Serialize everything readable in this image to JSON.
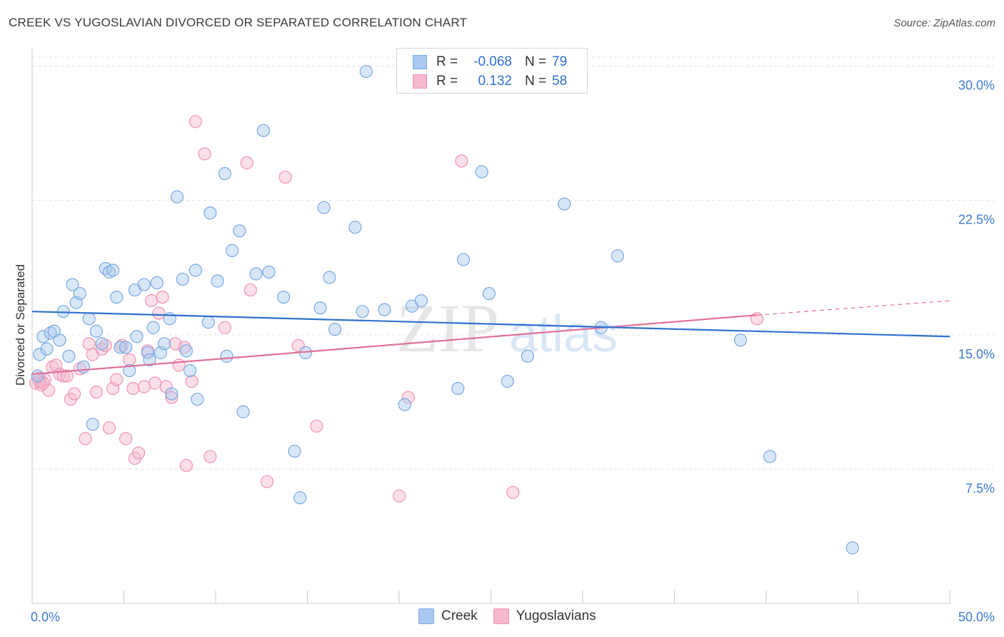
{
  "title": "CREEK VS YUGOSLAVIAN DIVORCED OR SEPARATED CORRELATION CHART",
  "source": "Source: ZipAtlas.com",
  "watermark": {
    "zip": "ZIP",
    "atlas": "atlas"
  },
  "legend": {
    "rows": [
      {
        "r_label": "R =",
        "r_value": "-0.068",
        "n_label": "N =",
        "n_value": "79"
      },
      {
        "r_label": "R =",
        "r_value": "0.132",
        "n_label": "N =",
        "n_value": "58"
      }
    ]
  },
  "bottom_legend": {
    "creek": "Creek",
    "yugoslavians": "Yugoslavians"
  },
  "colors": {
    "creek_fill": "#a9c9f0",
    "creek_stroke": "#7aa8e0",
    "creek_line": "#2f72d0",
    "yugo_fill": "#f6b8cb",
    "yugo_stroke": "#ee94b1",
    "yugo_line": "#e0709a",
    "tick_text": "#3d7bd0"
  },
  "chart_data": {
    "type": "scatter",
    "title": "CREEK VS YUGOSLAVIAN DIVORCED OR SEPARATED CORRELATION CHART",
    "xlabel": "",
    "ylabel": "Divorced or Separated",
    "xlim": [
      0,
      50
    ],
    "ylim": [
      0,
      30.5
    ],
    "x_tick_labels": [
      "0.0%",
      "50.0%"
    ],
    "y_ticks": [
      7.5,
      15.0,
      22.5,
      30.0
    ],
    "y_tick_labels": [
      "7.5%",
      "15.0%",
      "22.5%",
      "30.0%"
    ],
    "grid": true,
    "legend_placement": "top-center",
    "series": [
      {
        "name": "Creek",
        "r": -0.068,
        "n": 79,
        "trend": {
          "x": [
            0,
            50
          ],
          "y": [
            16.3,
            14.9
          ]
        },
        "points": [
          [
            0.3,
            12.7
          ],
          [
            0.4,
            13.9
          ],
          [
            0.6,
            14.9
          ],
          [
            0.8,
            14.2
          ],
          [
            1.0,
            15.1
          ],
          [
            1.2,
            15.2
          ],
          [
            1.5,
            14.7
          ],
          [
            1.7,
            16.3
          ],
          [
            2.0,
            13.8
          ],
          [
            2.2,
            17.8
          ],
          [
            2.4,
            16.8
          ],
          [
            2.6,
            17.3
          ],
          [
            2.8,
            13.2
          ],
          [
            3.1,
            15.9
          ],
          [
            3.3,
            10.0
          ],
          [
            3.5,
            15.2
          ],
          [
            3.8,
            14.5
          ],
          [
            4.0,
            18.7
          ],
          [
            4.2,
            18.5
          ],
          [
            4.4,
            18.6
          ],
          [
            4.6,
            17.1
          ],
          [
            4.8,
            14.3
          ],
          [
            5.1,
            14.3
          ],
          [
            5.3,
            13.0
          ],
          [
            5.6,
            17.5
          ],
          [
            5.7,
            14.9
          ],
          [
            6.1,
            17.8
          ],
          [
            6.3,
            14.0
          ],
          [
            6.4,
            13.6
          ],
          [
            6.6,
            15.4
          ],
          [
            6.8,
            17.9
          ],
          [
            7.0,
            14.0
          ],
          [
            7.2,
            14.5
          ],
          [
            7.5,
            15.9
          ],
          [
            7.6,
            11.7
          ],
          [
            7.9,
            22.7
          ],
          [
            8.2,
            18.1
          ],
          [
            8.4,
            14.1
          ],
          [
            8.6,
            13.0
          ],
          [
            8.9,
            18.6
          ],
          [
            9.0,
            11.4
          ],
          [
            9.6,
            15.7
          ],
          [
            9.7,
            21.8
          ],
          [
            10.1,
            18.0
          ],
          [
            10.5,
            24.0
          ],
          [
            10.6,
            13.8
          ],
          [
            10.9,
            19.7
          ],
          [
            11.3,
            20.8
          ],
          [
            11.5,
            10.7
          ],
          [
            12.2,
            18.4
          ],
          [
            12.6,
            26.4
          ],
          [
            12.9,
            18.5
          ],
          [
            13.7,
            17.1
          ],
          [
            14.3,
            8.5
          ],
          [
            14.6,
            5.9
          ],
          [
            14.9,
            14.0
          ],
          [
            15.7,
            16.5
          ],
          [
            15.9,
            22.1
          ],
          [
            16.2,
            18.2
          ],
          [
            16.5,
            15.3
          ],
          [
            17.6,
            21.0
          ],
          [
            18.0,
            16.3
          ],
          [
            18.2,
            29.7
          ],
          [
            19.2,
            16.4
          ],
          [
            20.3,
            11.1
          ],
          [
            20.7,
            16.6
          ],
          [
            21.2,
            16.9
          ],
          [
            23.2,
            12.0
          ],
          [
            23.5,
            19.2
          ],
          [
            24.5,
            24.1
          ],
          [
            24.9,
            17.3
          ],
          [
            25.9,
            12.4
          ],
          [
            27.0,
            13.8
          ],
          [
            29.0,
            22.3
          ],
          [
            31.0,
            15.4
          ],
          [
            31.9,
            19.4
          ],
          [
            38.6,
            14.7
          ],
          [
            40.2,
            8.2
          ],
          [
            44.7,
            3.1
          ]
        ]
      },
      {
        "name": "Yugoslavians",
        "r": 0.132,
        "n": 58,
        "trend": {
          "x": [
            0,
            39.5
          ],
          "y": [
            12.8,
            16.1
          ]
        },
        "trend_dashed": {
          "x": [
            39.5,
            50
          ],
          "y": [
            16.1,
            16.9
          ]
        },
        "points": [
          [
            0.2,
            12.3
          ],
          [
            0.4,
            12.6
          ],
          [
            0.5,
            12.2
          ],
          [
            0.7,
            12.5
          ],
          [
            0.9,
            11.9
          ],
          [
            1.1,
            13.2
          ],
          [
            1.3,
            13.3
          ],
          [
            1.5,
            12.8
          ],
          [
            1.7,
            12.7
          ],
          [
            1.9,
            12.7
          ],
          [
            2.1,
            11.4
          ],
          [
            2.3,
            11.7
          ],
          [
            2.6,
            13.1
          ],
          [
            2.9,
            9.2
          ],
          [
            3.1,
            14.5
          ],
          [
            3.3,
            13.9
          ],
          [
            3.5,
            11.8
          ],
          [
            3.8,
            14.2
          ],
          [
            4.0,
            14.4
          ],
          [
            4.2,
            9.8
          ],
          [
            4.4,
            12.0
          ],
          [
            4.6,
            12.5
          ],
          [
            4.9,
            14.4
          ],
          [
            5.1,
            9.2
          ],
          [
            5.3,
            13.6
          ],
          [
            5.5,
            12.0
          ],
          [
            5.6,
            8.1
          ],
          [
            5.8,
            8.4
          ],
          [
            6.1,
            12.1
          ],
          [
            6.3,
            14.1
          ],
          [
            6.5,
            16.9
          ],
          [
            6.7,
            12.3
          ],
          [
            6.9,
            16.2
          ],
          [
            7.1,
            17.1
          ],
          [
            7.3,
            12.1
          ],
          [
            7.6,
            11.5
          ],
          [
            7.8,
            14.5
          ],
          [
            8.0,
            13.3
          ],
          [
            8.3,
            14.3
          ],
          [
            8.4,
            7.7
          ],
          [
            8.7,
            12.4
          ],
          [
            8.9,
            26.9
          ],
          [
            9.4,
            25.1
          ],
          [
            9.7,
            8.2
          ],
          [
            10.5,
            15.4
          ],
          [
            11.7,
            24.6
          ],
          [
            11.9,
            17.5
          ],
          [
            12.8,
            6.8
          ],
          [
            13.8,
            23.8
          ],
          [
            14.5,
            14.4
          ],
          [
            15.5,
            9.9
          ],
          [
            20.0,
            6.0
          ],
          [
            20.5,
            11.5
          ],
          [
            23.4,
            24.7
          ],
          [
            26.2,
            6.2
          ],
          [
            39.5,
            15.9
          ],
          [
            0.4,
            12.4
          ],
          [
            0.6,
            12.3
          ]
        ]
      }
    ]
  }
}
